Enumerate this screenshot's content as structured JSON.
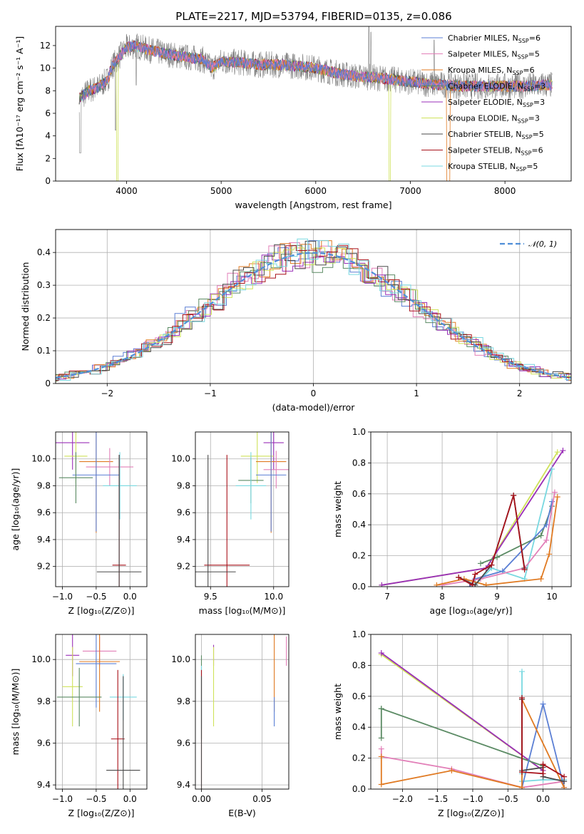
{
  "title": "PLATE=2217, MJD=53794, FIBERID=0135, z=0.086",
  "colors": {
    "Chabrier MILES": "#5b7fd4",
    "Salpeter MILES": "#e27fb8",
    "Kroupa MILES": "#e07a22",
    "Chabrier ELODIE": "#5a8a63",
    "Salpeter ELODIE": "#9a2fb8",
    "Kroupa ELODIE": "#cfe25a",
    "Chabrier STELIB": "#4a4a4a",
    "Salpeter STELIB": "#a8111a",
    "Kroupa STELIB": "#78d8e0",
    "data": "#808080",
    "normal": "#4f8fd8"
  },
  "chart_data": [
    {
      "id": "spectrum",
      "type": "line",
      "xlabel": "wavelength [Angstrom, rest frame]",
      "ylabel": "Flux [fλ10⁻¹⁷ erg cm⁻² s⁻¹ A⁻¹]",
      "xlim": [
        3250,
        8700
      ],
      "ylim": [
        0,
        13.7
      ],
      "xticks": [
        4000,
        5000,
        6000,
        7000,
        8000
      ],
      "yticks": [
        0,
        2,
        4,
        6,
        8,
        10,
        12
      ],
      "legend_loc": "upper right",
      "legend": [
        {
          "label": "Chabrier MILES, N",
          "n": "=6",
          "key": "Chabrier MILES"
        },
        {
          "label": "Salpeter MILES, N",
          "n": "=5",
          "key": "Salpeter MILES"
        },
        {
          "label": "Kroupa MILES, N",
          "n": "=6",
          "key": "Kroupa MILES"
        },
        {
          "label": "Chabrier ELODIE, N",
          "n": "=3",
          "key": "Chabrier ELODIE"
        },
        {
          "label": "Salpeter ELODIE, N",
          "n": "=3",
          "key": "Salpeter ELODIE"
        },
        {
          "label": "Kroupa ELODIE, N",
          "n": "=3",
          "key": "Kroupa ELODIE"
        },
        {
          "label": "Chabrier STELIB, N",
          "n": "=5",
          "key": "Chabrier STELIB"
        },
        {
          "label": "Salpeter STELIB, N",
          "n": "=6",
          "key": "Salpeter STELIB"
        },
        {
          "label": "Kroupa STELIB, N",
          "n": "=5",
          "key": "Kroupa STELIB"
        }
      ],
      "nssp_sub": "SSP",
      "continuum": [
        [
          3500,
          7.3
        ],
        [
          3600,
          8.0
        ],
        [
          3700,
          8.3
        ],
        [
          3800,
          9.0
        ],
        [
          3850,
          10.2
        ],
        [
          3950,
          11.3
        ],
        [
          4000,
          11.8
        ],
        [
          4100,
          12.0
        ],
        [
          4200,
          11.7
        ],
        [
          4400,
          11.3
        ],
        [
          4600,
          11.0
        ],
        [
          4800,
          10.8
        ],
        [
          4900,
          10.0
        ],
        [
          5000,
          10.6
        ],
        [
          5200,
          10.5
        ],
        [
          5400,
          10.3
        ],
        [
          5600,
          10.3
        ],
        [
          5800,
          10.2
        ],
        [
          6000,
          10.0
        ],
        [
          6200,
          9.6
        ],
        [
          6400,
          9.3
        ],
        [
          6600,
          9.2
        ],
        [
          6800,
          9.0
        ],
        [
          7000,
          8.8
        ],
        [
          7200,
          8.6
        ],
        [
          7400,
          8.5
        ],
        [
          7600,
          8.4
        ],
        [
          7800,
          8.4
        ],
        [
          8000,
          8.4
        ],
        [
          8200,
          8.4
        ],
        [
          8400,
          8.5
        ],
        [
          8500,
          8.5
        ]
      ]
    },
    {
      "id": "residuals",
      "type": "bar",
      "xlabel": "(data-model)/error",
      "ylabel": "Normed distribution",
      "xlim": [
        -2.5,
        2.5
      ],
      "ylim": [
        0,
        0.47
      ],
      "xticks": [
        -2,
        -1,
        0,
        1,
        2
      ],
      "yticks": [
        0.0,
        0.1,
        0.2,
        0.3,
        0.4
      ],
      "legend": [
        {
          "label": "𝒩(0, 1)",
          "style": "dashed"
        }
      ],
      "legend_loc": "upper right"
    },
    {
      "id": "age-vs-Z",
      "type": "scatter",
      "xlabel": "Z [log₁₀(Z/Z⊙)]",
      "ylabel": "age  [log₁₀(age/yr)]",
      "xlim": [
        -1.1,
        0.25
      ],
      "ylim": [
        9.05,
        10.2
      ],
      "xticks": [
        -1.0,
        -0.5,
        0.0
      ],
      "yticks": [
        9.2,
        9.4,
        9.6,
        9.8,
        10.0
      ],
      "points": [
        {
          "key": "Salpeter ELODIE",
          "x": -0.85,
          "xerr": 0.25,
          "y": 10.12,
          "yerr": 0.2
        },
        {
          "key": "Kroupa ELODIE",
          "x": -0.8,
          "xerr": 0.17,
          "y": 10.02,
          "yerr": 0.2
        },
        {
          "key": "Kroupa MILES",
          "x": -0.5,
          "xerr": 0.25,
          "y": 9.98,
          "yerr": 0.53
        },
        {
          "key": "Salpeter MILES",
          "x": -0.3,
          "xerr": 0.35,
          "y": 9.94,
          "yerr": 0.14
        },
        {
          "key": "Chabrier MILES",
          "x": -0.5,
          "xerr": 0.35,
          "y": 9.88,
          "yerr": 0.42
        },
        {
          "key": "Chabrier ELODIE",
          "x": -0.8,
          "xerr": 0.25,
          "y": 9.86,
          "yerr": 0.19
        },
        {
          "key": "Kroupa STELIB",
          "x": -0.15,
          "xerr": 0.25,
          "y": 9.8,
          "yerr": 0.25
        },
        {
          "key": "Salpeter STELIB",
          "x": -0.16,
          "xerr": 0.1,
          "y": 9.21,
          "yerr": 0.82
        },
        {
          "key": "Chabrier STELIB",
          "x": -0.16,
          "xerr": 0.33,
          "y": 9.16,
          "yerr": 0.87
        }
      ]
    },
    {
      "id": "age-vs-mass",
      "type": "scatter",
      "xlabel": "mass [log₁₀(M/M⊙)]",
      "ylabel": "",
      "xlim": [
        9.38,
        10.12
      ],
      "ylim": [
        9.05,
        10.2
      ],
      "xticks": [
        9.5,
        10.0
      ],
      "yticks": [
        9.2,
        9.4,
        9.6,
        9.8,
        10.0
      ],
      "points": [
        {
          "key": "Salpeter ELODIE",
          "x": 10.0,
          "xerr": 0.08,
          "y": 10.12,
          "yerr": 0.2
        },
        {
          "key": "Kroupa ELODIE",
          "x": 9.87,
          "xerr": 0.13,
          "y": 10.02,
          "yerr": 0.2
        },
        {
          "key": "Kroupa MILES",
          "x": 9.98,
          "xerr": 0.12,
          "y": 9.98,
          "yerr": 0.53
        },
        {
          "key": "Salpeter MILES",
          "x": 10.02,
          "xerr": 0.1,
          "y": 9.92,
          "yerr": 0.14
        },
        {
          "key": "Chabrier MILES",
          "x": 9.98,
          "xerr": 0.12,
          "y": 9.88,
          "yerr": 0.42
        },
        {
          "key": "Chabrier ELODIE",
          "x": 9.82,
          "xerr": 0.1,
          "y": 9.84,
          "yerr": 0.17
        },
        {
          "key": "Kroupa STELIB",
          "x": 9.82,
          "xerr": 0.12,
          "y": 9.8,
          "yerr": 0.25
        },
        {
          "key": "Salpeter STELIB",
          "x": 9.63,
          "xerr": 0.18,
          "y": 9.21,
          "yerr": 0.82
        },
        {
          "key": "Chabrier STELIB",
          "x": 9.48,
          "xerr": 0.22,
          "y": 9.16,
          "yerr": 0.87
        }
      ]
    },
    {
      "id": "weight-vs-age",
      "type": "line",
      "xlabel": "age  [log₁₀(age/yr)]",
      "ylabel": "mass weight",
      "xlim": [
        6.7,
        10.35
      ],
      "ylim": [
        0,
        1.0
      ],
      "xticks": [
        7,
        8,
        9,
        10
      ],
      "yticks": [
        0.0,
        0.2,
        0.4,
        0.6,
        0.8,
        1.0
      ],
      "series": [
        {
          "key": "Kroupa ELODIE",
          "x": [
            6.9,
            8.8,
            10.1
          ],
          "y": [
            0.01,
            0.12,
            0.87
          ]
        },
        {
          "key": "Salpeter ELODIE",
          "x": [
            6.9,
            8.8,
            10.2
          ],
          "y": [
            0.01,
            0.12,
            0.88
          ]
        },
        {
          "key": "Kroupa STELIB",
          "x": [
            8.6,
            8.9,
            9.5,
            10.0
          ],
          "y": [
            0.01,
            0.12,
            0.05,
            0.76
          ]
        },
        {
          "key": "Chabrier ELODIE",
          "x": [
            8.7,
            9.0,
            9.8,
            10.0
          ],
          "y": [
            0.15,
            0.19,
            0.33,
            0.52
          ]
        },
        {
          "key": "Chabrier MILES",
          "x": [
            8.5,
            8.6,
            9.1,
            9.9,
            10.0
          ],
          "y": [
            0.0,
            0.05,
            0.1,
            0.4,
            0.55
          ]
        },
        {
          "key": "Salpeter MILES",
          "x": [
            8.0,
            8.7,
            9.5,
            9.9,
            10.05
          ],
          "y": [
            0.01,
            0.05,
            0.12,
            0.3,
            0.61
          ]
        },
        {
          "key": "Kroupa MILES",
          "x": [
            7.9,
            8.4,
            8.8,
            9.8,
            9.95,
            10.1
          ],
          "y": [
            0.01,
            0.05,
            0.01,
            0.05,
            0.21,
            0.58
          ]
        },
        {
          "key": "Chabrier STELIB",
          "x": [
            8.3,
            8.6,
            8.9,
            9.3,
            9.5
          ],
          "y": [
            0.06,
            0.01,
            0.14,
            0.59,
            0.12
          ]
        },
        {
          "key": "Salpeter STELIB",
          "x": [
            8.3,
            8.55,
            8.6,
            8.9,
            9.3,
            9.5
          ],
          "y": [
            0.06,
            0.01,
            0.08,
            0.14,
            0.59,
            0.11
          ]
        }
      ]
    },
    {
      "id": "mass-vs-Z",
      "type": "scatter",
      "xlabel": "Z [log₁₀(Z/Z⊙)]",
      "ylabel": "mass [log₁₀(M/M⊙)]",
      "xlim": [
        -1.1,
        0.25
      ],
      "ylim": [
        9.38,
        10.12
      ],
      "xticks": [
        -1.0,
        -0.5,
        0.0
      ],
      "yticks": [
        9.4,
        9.6,
        9.8,
        10.0
      ],
      "points": [
        {
          "key": "Salpeter ELODIE",
          "x": -0.85,
          "xerr": 0.1,
          "y": 10.02,
          "yerr": 0.1
        },
        {
          "key": "Salpeter MILES",
          "x": -0.45,
          "xerr": 0.25,
          "y": 10.04,
          "yerr": 0.07
        },
        {
          "key": "Kroupa MILES",
          "x": -0.45,
          "xerr": 0.3,
          "y": 9.99,
          "yerr": 0.24
        },
        {
          "key": "Chabrier MILES",
          "x": -0.5,
          "xerr": 0.3,
          "y": 9.98,
          "yerr": 0.21
        },
        {
          "key": "Kroupa ELODIE",
          "x": -0.85,
          "xerr": 0.15,
          "y": 9.87,
          "yerr": 0.19
        },
        {
          "key": "Kroupa STELIB",
          "x": -0.1,
          "xerr": 0.2,
          "y": 9.82,
          "yerr": 0.11
        },
        {
          "key": "Chabrier ELODIE",
          "x": -0.75,
          "xerr": 0.33,
          "y": 9.82,
          "yerr": 0.14
        },
        {
          "key": "Salpeter STELIB",
          "x": -0.18,
          "xerr": 0.1,
          "y": 9.62,
          "yerr": 0.33
        },
        {
          "key": "Chabrier STELIB",
          "x": -0.1,
          "xerr": 0.25,
          "y": 9.47,
          "yerr": 0.45
        }
      ]
    },
    {
      "id": "mass-vs-ebv",
      "type": "scatter",
      "xlabel": "E(B-V)",
      "ylabel": "",
      "xlim": [
        -0.005,
        0.072
      ],
      "ylim": [
        9.38,
        10.12
      ],
      "xticks": [
        0.0,
        0.05
      ],
      "yticks": [
        9.4,
        9.6,
        9.8,
        10.0
      ],
      "points": [
        {
          "key": "Chabrier ELODIE",
          "x": 0.0,
          "y": 9.82,
          "yerr": 0.2
        },
        {
          "key": "Kroupa STELIB",
          "x": 0.0,
          "y": 9.82,
          "yerr": 0.15
        },
        {
          "key": "Salpeter STELIB",
          "x": 0.0,
          "y": 9.62,
          "yerr": 0.33
        },
        {
          "key": "Chabrier STELIB",
          "x": 0.0,
          "y": 9.47,
          "yerr": 0.45
        },
        {
          "key": "Salpeter ELODIE",
          "x": 0.01,
          "y": 10.02,
          "yerr": 0.05
        },
        {
          "key": "Kroupa ELODIE",
          "x": 0.01,
          "y": 9.87,
          "yerr": 0.19
        },
        {
          "key": "Kroupa MILES",
          "x": 0.06,
          "y": 9.99,
          "yerr": 0.24
        },
        {
          "key": "Chabrier MILES",
          "x": 0.06,
          "y": 9.75,
          "yerr": 0.07
        },
        {
          "key": "Salpeter MILES",
          "x": 0.07,
          "y": 10.04,
          "yerr": 0.07
        }
      ]
    },
    {
      "id": "weight-vs-Z",
      "type": "line",
      "xlabel": "Z [log₁₀(Z/Z⊙)]",
      "ylabel": "mass weight",
      "xlim": [
        -2.45,
        0.4
      ],
      "ylim": [
        0,
        1.0
      ],
      "xticks": [
        -2.0,
        -1.5,
        -1.0,
        -0.5,
        0.0
      ],
      "yticks": [
        0.0,
        0.2,
        0.4,
        0.6,
        0.8,
        1.0
      ],
      "series": [
        {
          "key": "Kroupa ELODIE",
          "x": [
            -2.3,
            0.0
          ],
          "y": [
            0.87,
            0.12
          ]
        },
        {
          "key": "Salpeter ELODIE",
          "x": [
            -2.3,
            0.0
          ],
          "y": [
            0.88,
            0.12
          ]
        },
        {
          "key": "Chabrier ELODIE",
          "x": [
            -2.3,
            -2.3,
            -2.3,
            0.0
          ],
          "y": [
            0.33,
            0.52,
            0.52,
            0.15
          ]
        },
        {
          "key": "Kroupa STELIB",
          "x": [
            -0.3,
            -0.3,
            -0.3,
            0.0,
            0.3
          ],
          "y": [
            0.76,
            0.1,
            0.05,
            0.06,
            0.06
          ]
        },
        {
          "key": "Chabrier MILES",
          "x": [
            -0.3,
            0.0,
            0.3
          ],
          "y": [
            0.01,
            0.55,
            0.01
          ]
        },
        {
          "key": "Salpeter MILES",
          "x": [
            -2.3,
            -2.3,
            -1.3,
            -0.3,
            0.3
          ],
          "y": [
            0.26,
            0.21,
            0.13,
            0.01,
            0.05
          ]
        },
        {
          "key": "Kroupa MILES",
          "x": [
            -2.3,
            -2.3,
            -1.3,
            -0.3,
            -0.3,
            0.3
          ],
          "y": [
            0.21,
            0.03,
            0.12,
            0.01,
            0.58,
            0.01
          ]
        },
        {
          "key": "Chabrier STELIB",
          "x": [
            -0.3,
            -0.3,
            0.0,
            0.0,
            0.3
          ],
          "y": [
            0.58,
            0.12,
            0.14,
            0.08,
            0.05
          ]
        },
        {
          "key": "Salpeter STELIB",
          "x": [
            -0.3,
            -0.3,
            0.0,
            0.0,
            0.3
          ],
          "y": [
            0.59,
            0.11,
            0.1,
            0.16,
            0.08
          ]
        }
      ]
    }
  ]
}
